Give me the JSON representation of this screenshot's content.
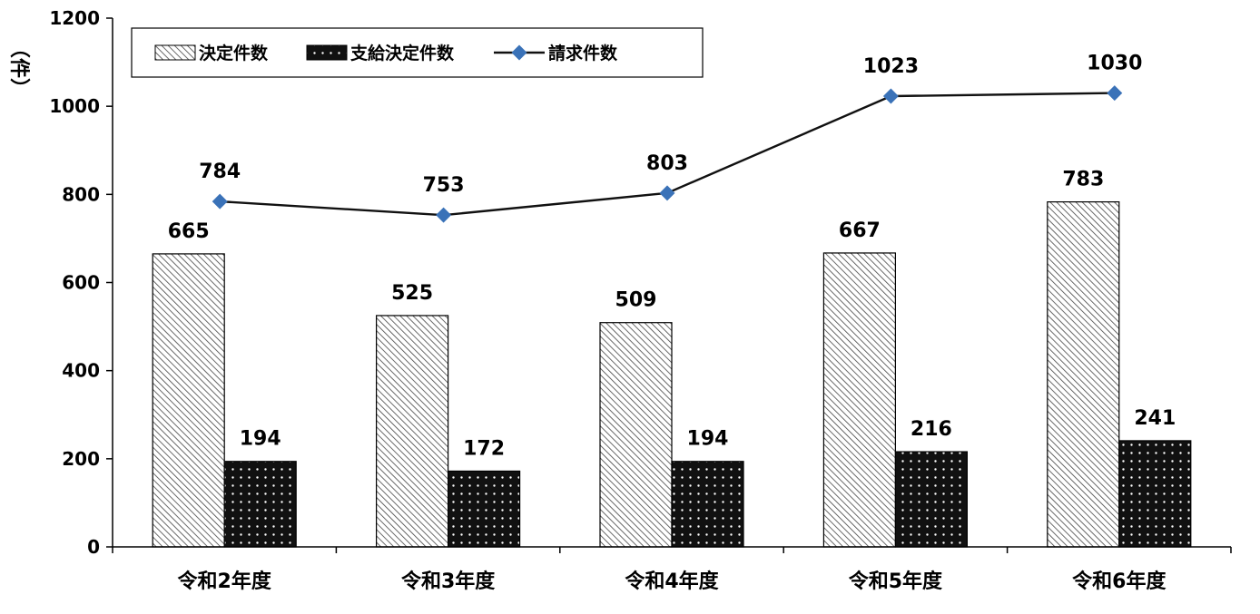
{
  "chart_data": {
    "type": "bar",
    "categories": [
      "令和2年度",
      "令和3年度",
      "令和4年度",
      "令和5年度",
      "令和6年度"
    ],
    "series": [
      {
        "name": "決定件数",
        "kind": "bar",
        "pattern": "diagonal-hatch",
        "values": [
          665,
          525,
          509,
          667,
          783
        ]
      },
      {
        "name": "支給決定件数",
        "kind": "bar",
        "pattern": "dark-dotted",
        "values": [
          194,
          172,
          194,
          216,
          241
        ]
      },
      {
        "name": "請求件数",
        "kind": "line",
        "color": "#3a72b8",
        "values": [
          784,
          753,
          803,
          1023,
          1030
        ]
      }
    ],
    "yunit": "（件）",
    "ylim": [
      0,
      1200
    ],
    "yticks": [
      0,
      200,
      400,
      600,
      800,
      1000,
      1200
    ],
    "grid": false,
    "legend": "top-left"
  }
}
